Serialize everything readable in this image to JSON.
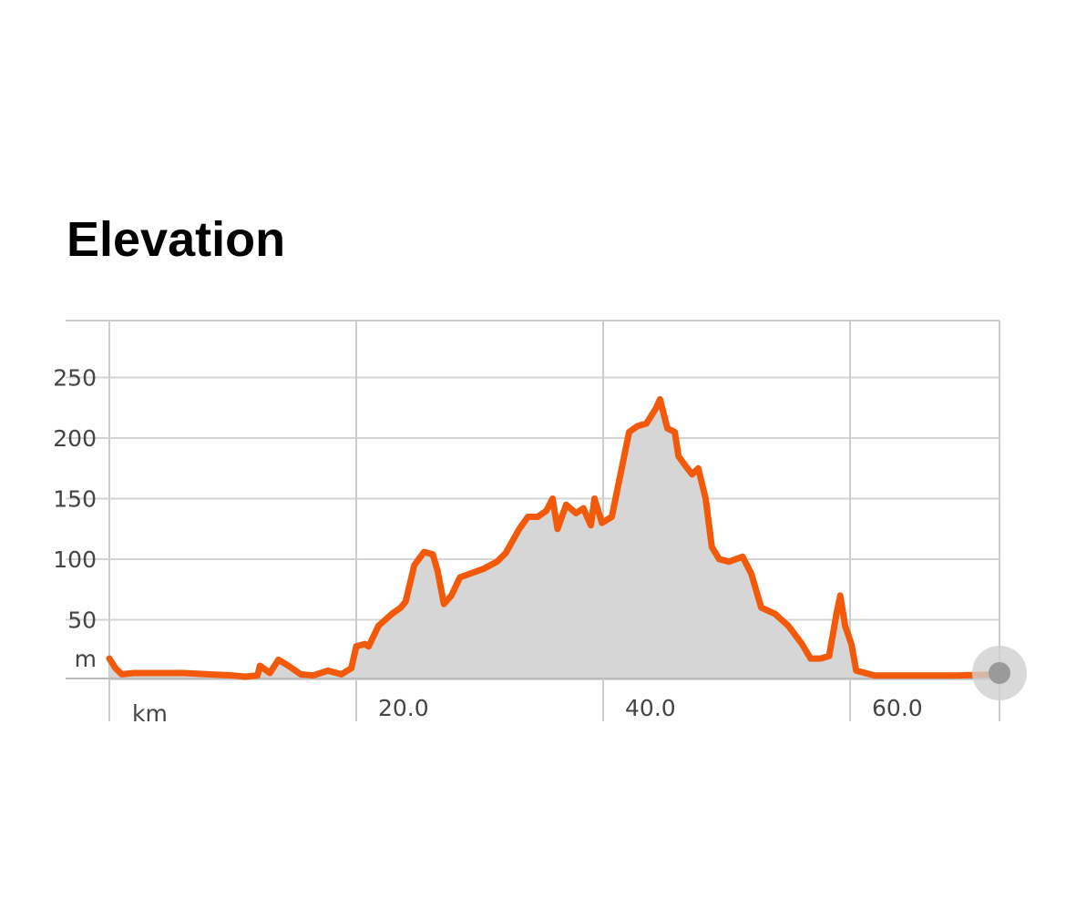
{
  "header": {
    "title": "Elevation"
  },
  "chart_data": {
    "type": "area",
    "x_label": "km",
    "y_label": "m",
    "x": [
      0,
      0.5,
      1,
      2,
      4,
      6,
      8,
      10,
      11,
      12,
      12.2,
      13,
      13.7,
      14.5,
      15.5,
      16.5,
      17.7,
      18.8,
      19.6,
      20,
      20.7,
      21,
      21.8,
      22.9,
      23.6,
      24,
      24.7,
      25.5,
      26.2,
      26.6,
      27.1,
      27.7,
      28.4,
      29.2,
      30.3,
      31.4,
      32.1,
      33.2,
      33.9,
      34.7,
      35.4,
      35.9,
      36.3,
      37,
      37.8,
      38.4,
      39,
      39.3,
      39.9,
      40.7,
      41.3,
      42.1,
      42.8,
      43.5,
      44.3,
      44.6,
      45.2,
      45.8,
      46.1,
      46.6,
      47.2,
      47.7,
      48.3,
      48.8,
      49.4,
      50.2,
      51.3,
      52,
      52.8,
      53.9,
      55,
      56.1,
      56.8,
      57.6,
      58.3,
      58.9,
      59.2,
      59.6,
      60.1,
      60.5,
      62,
      64.9,
      68.6,
      72
    ],
    "values": [
      18,
      10,
      5,
      6,
      6,
      6,
      5,
      4,
      3,
      4,
      12,
      6,
      17,
      12,
      5,
      4,
      8,
      5,
      10,
      28,
      30,
      28,
      45,
      55,
      60,
      65,
      95,
      106,
      104,
      90,
      63,
      70,
      85,
      88,
      92,
      98,
      105,
      125,
      135,
      135,
      140,
      150,
      125,
      145,
      138,
      142,
      128,
      150,
      130,
      135,
      165,
      205,
      210,
      212,
      225,
      232,
      208,
      205,
      185,
      178,
      170,
      175,
      150,
      110,
      100,
      98,
      102,
      88,
      60,
      55,
      45,
      30,
      18,
      18,
      20,
      55,
      70,
      45,
      30,
      8,
      4,
      4,
      4,
      5
    ],
    "color": "#f25a0a",
    "fill": "#d6d6d6",
    "xlim": [
      0,
      72.1
    ],
    "ylim": [
      0,
      297
    ],
    "xticks": [
      {
        "value": 20,
        "label": "20.0"
      },
      {
        "value": 40,
        "label": "40.0"
      },
      {
        "value": 60,
        "label": "60.0"
      }
    ],
    "yticks": [
      50,
      100,
      150,
      200,
      250
    ],
    "grid": true
  }
}
